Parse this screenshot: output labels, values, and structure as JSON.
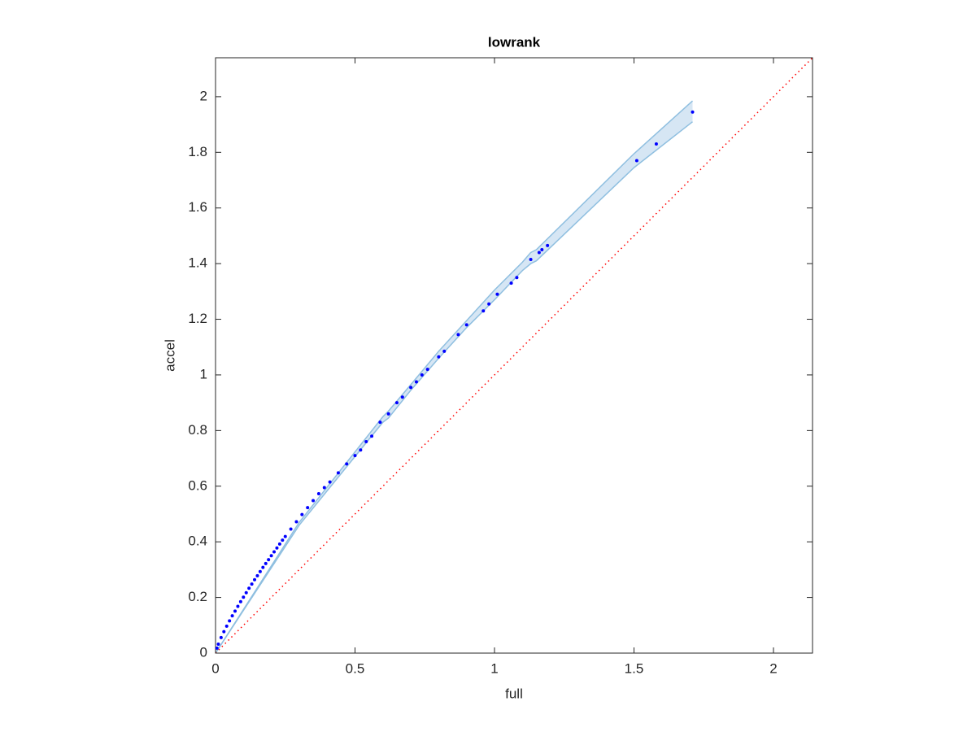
{
  "chart_data": {
    "type": "scatter",
    "title": "lowrank",
    "xlabel": "full",
    "ylabel": "accel",
    "xlim": [
      0,
      2.14
    ],
    "ylim": [
      0,
      2.14
    ],
    "xticks": [
      0,
      0.5,
      1,
      1.5,
      2
    ],
    "yticks": [
      0,
      0.2,
      0.4,
      0.6,
      0.8,
      1,
      1.2,
      1.4,
      1.6,
      1.8,
      2
    ],
    "grid": false,
    "points": {
      "color": "#0000ff",
      "x": [
        0.005,
        0.01,
        0.02,
        0.03,
        0.04,
        0.05,
        0.06,
        0.07,
        0.08,
        0.09,
        0.1,
        0.11,
        0.12,
        0.13,
        0.14,
        0.15,
        0.16,
        0.17,
        0.18,
        0.19,
        0.2,
        0.21,
        0.22,
        0.23,
        0.24,
        0.25,
        0.27,
        0.29,
        0.31,
        0.33,
        0.35,
        0.37,
        0.39,
        0.41,
        0.44,
        0.47,
        0.5,
        0.52,
        0.54,
        0.56,
        0.59,
        0.62,
        0.65,
        0.67,
        0.7,
        0.72,
        0.74,
        0.76,
        0.8,
        0.82,
        0.87,
        0.9,
        0.96,
        0.98,
        1.01,
        1.06,
        1.08,
        1.13,
        1.16,
        1.17,
        1.19,
        1.51,
        1.58,
        1.71
      ],
      "y": [
        0.018,
        0.032,
        0.056,
        0.077,
        0.097,
        0.116,
        0.134,
        0.151,
        0.168,
        0.185,
        0.201,
        0.217,
        0.233,
        0.248,
        0.264,
        0.278,
        0.293,
        0.308,
        0.322,
        0.336,
        0.35,
        0.364,
        0.378,
        0.392,
        0.406,
        0.419,
        0.446,
        0.472,
        0.498,
        0.523,
        0.548,
        0.573,
        0.595,
        0.615,
        0.648,
        0.68,
        0.71,
        0.73,
        0.76,
        0.78,
        0.83,
        0.86,
        0.9,
        0.92,
        0.955,
        0.975,
        1.0,
        1.02,
        1.065,
        1.085,
        1.145,
        1.18,
        1.23,
        1.255,
        1.29,
        1.33,
        1.35,
        1.415,
        1.44,
        1.45,
        1.465,
        1.77,
        1.83,
        1.945
      ]
    },
    "band": {
      "fill": "#d6e6f4",
      "color": "#8fbfe0",
      "x": [
        0,
        0.3,
        0.6,
        0.62,
        0.7,
        0.8,
        0.9,
        1.0,
        1.1,
        1.13,
        1.15,
        1.5,
        1.71
      ],
      "upper": [
        0,
        0.47,
        0.85,
        0.87,
        0.965,
        1.085,
        1.195,
        1.305,
        1.405,
        1.44,
        1.45,
        1.795,
        1.985
      ],
      "lower": [
        0,
        0.46,
        0.83,
        0.845,
        0.945,
        1.06,
        1.17,
        1.27,
        1.375,
        1.4,
        1.41,
        1.745,
        1.91
      ]
    },
    "reference_line": {
      "color": "#ff0000",
      "x": [
        0,
        2.14
      ],
      "y": [
        0,
        2.14
      ]
    }
  }
}
